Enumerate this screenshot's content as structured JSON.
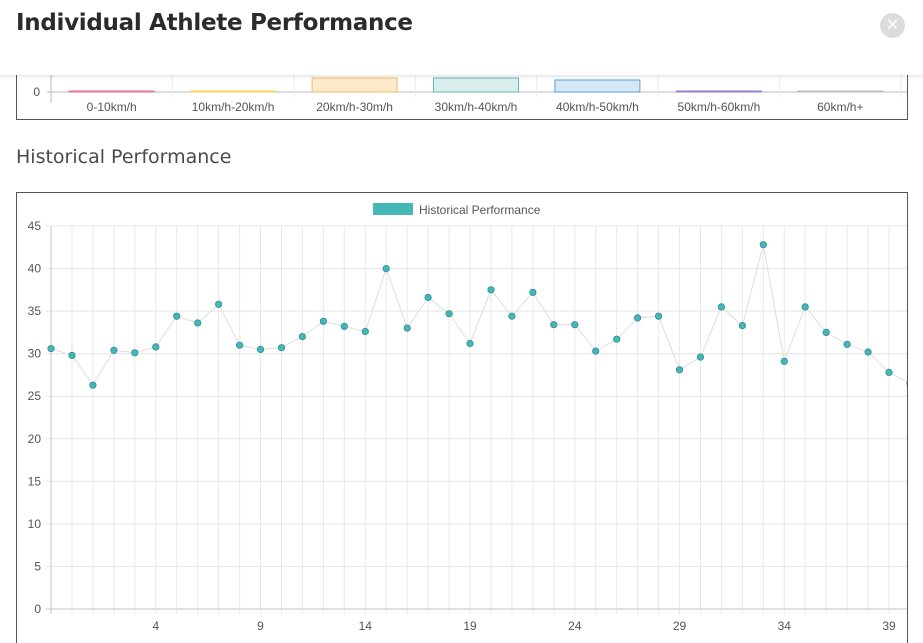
{
  "header": {
    "title": "Individual Athlete Performance",
    "close_icon": "close-icon"
  },
  "speed_chart": {
    "y_tick": "0",
    "categories": [
      "0-10km/h",
      "10km/h-20km/h",
      "20km/h-30m/h",
      "30km/h-40km/h",
      "40km/h-50km/h",
      "50km/h-60km/h",
      "60km/h+"
    ],
    "bar_fills": [
      "#f7d6dc",
      "#fff3cf",
      "#fde9cc",
      "#d9efee",
      "#d6e7f6",
      "#e6dcf3",
      "#eeeeee"
    ],
    "bar_strokes": [
      "#e8738f",
      "#f5d565",
      "#f3b865",
      "#5fb8b5",
      "#5b9fd8",
      "#9a7ccf",
      "#bbbbbb"
    ]
  },
  "historical": {
    "heading": "Historical Performance"
  },
  "chart_data": [
    {
      "type": "bar",
      "categories": [
        "0-10km/h",
        "10km/h-20km/h",
        "20km/h-30m/h",
        "30km/h-40km/h",
        "40km/h-50km/h",
        "50km/h-60km/h",
        "60km/h+"
      ],
      "y_ticks_visible": [
        "0"
      ],
      "note_partial": "only the bottom of this chart is visible; bar values are cut off"
    },
    {
      "type": "line",
      "legend": [
        "Historical Performance"
      ],
      "legend_position": "top",
      "color": "#45b7b8",
      "grid": true,
      "ylim": [
        0,
        45
      ],
      "y_ticks": [
        0,
        5,
        10,
        15,
        20,
        25,
        30,
        35,
        40,
        45
      ],
      "x_ticks": [
        4,
        9,
        14,
        19,
        24,
        29,
        34,
        39
      ],
      "x": [
        -1,
        0,
        1,
        2,
        3,
        4,
        5,
        6,
        7,
        8,
        9,
        10,
        11,
        12,
        13,
        14,
        15,
        16,
        17,
        18,
        19,
        20,
        21,
        22,
        23,
        24,
        25,
        26,
        27,
        28,
        29,
        30,
        31,
        32,
        33,
        34,
        35,
        36,
        37,
        38,
        39,
        40
      ],
      "series": [
        {
          "name": "Historical Performance",
          "values": [
            30.6,
            29.8,
            26.3,
            30.4,
            30.1,
            30.8,
            34.4,
            33.6,
            35.8,
            31.0,
            30.5,
            30.7,
            32.0,
            33.8,
            33.2,
            32.6,
            40.0,
            33.0,
            36.6,
            34.7,
            31.2,
            37.5,
            34.4,
            37.2,
            33.4,
            33.4,
            30.3,
            31.7,
            34.2,
            34.4,
            28.1,
            29.6,
            35.5,
            33.3,
            42.8,
            29.1,
            35.5,
            32.5,
            31.1,
            30.2,
            27.8,
            26.5
          ]
        }
      ]
    }
  ]
}
